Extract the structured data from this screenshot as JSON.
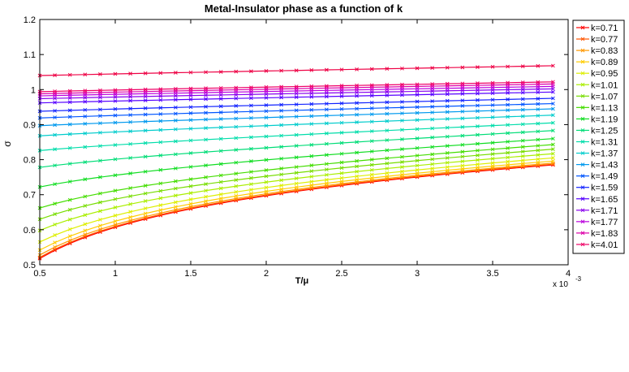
{
  "chart_data": {
    "type": "line",
    "title": "Metal-Insulator phase as a function of k",
    "xlabel": "T/μ",
    "ylabel": "σ",
    "xlim": [
      0.5,
      4
    ],
    "ylim": [
      0.5,
      1.2
    ],
    "x_multiplier_label": "x 10",
    "x_multiplier_exponent": "-3",
    "x_ticks": [
      0.5,
      1,
      1.5,
      2,
      2.5,
      3,
      3.5,
      4
    ],
    "x_tick_labels": [
      "0.5",
      "1",
      "1.5",
      "2",
      "2.5",
      "3",
      "3.5",
      "4"
    ],
    "y_ticks": [
      0.5,
      0.6,
      0.7,
      0.8,
      0.9,
      1.0,
      1.1,
      1.2
    ],
    "y_tick_labels": [
      "0.5",
      "0.6",
      "0.7",
      "0.8",
      "0.9",
      "1",
      "1.1",
      "1.2"
    ],
    "grid": false,
    "legend_position": "top-right",
    "marker": "x",
    "x": [
      0.5,
      0.6,
      0.7,
      0.8,
      0.9,
      1.0,
      1.1,
      1.2,
      1.3,
      1.4,
      1.5,
      1.6,
      1.7,
      1.8,
      1.9,
      2.0,
      2.1,
      2.2,
      2.3,
      2.4,
      2.5,
      2.6,
      2.7,
      2.8,
      2.9,
      3.0,
      3.1,
      3.2,
      3.3,
      3.4,
      3.5,
      3.6,
      3.7,
      3.8,
      3.9
    ],
    "series": [
      {
        "name": "k=0.71",
        "color": "#ff0000",
        "start": 0.518,
        "end": 0.785
      },
      {
        "name": "k=0.77",
        "color": "#ff5500",
        "start": 0.521,
        "end": 0.787
      },
      {
        "name": "k=0.83",
        "color": "#ff9900",
        "start": 0.528,
        "end": 0.79
      },
      {
        "name": "k=0.89",
        "color": "#ffcc00",
        "start": 0.542,
        "end": 0.796
      },
      {
        "name": "k=0.95",
        "color": "#ddee00",
        "start": 0.565,
        "end": 0.805
      },
      {
        "name": "k=1.01",
        "color": "#aaee00",
        "start": 0.598,
        "end": 0.817
      },
      {
        "name": "k=1.07",
        "color": "#77dd00",
        "start": 0.63,
        "end": 0.83
      },
      {
        "name": "k=1.13",
        "color": "#44dd00",
        "start": 0.662,
        "end": 0.843
      },
      {
        "name": "k=1.19",
        "color": "#11dd22",
        "start": 0.722,
        "end": 0.86
      },
      {
        "name": "k=1.25",
        "color": "#00dd77",
        "start": 0.778,
        "end": 0.883
      },
      {
        "name": "k=1.31",
        "color": "#00ddaa",
        "start": 0.826,
        "end": 0.905
      },
      {
        "name": "k=1.37",
        "color": "#00cccc",
        "start": 0.868,
        "end": 0.927
      },
      {
        "name": "k=1.43",
        "color": "#0099ee",
        "start": 0.897,
        "end": 0.945
      },
      {
        "name": "k=1.49",
        "color": "#0055ff",
        "start": 0.919,
        "end": 0.96
      },
      {
        "name": "k=1.59",
        "color": "#1122ff",
        "start": 0.938,
        "end": 0.975
      },
      {
        "name": "k=1.65",
        "color": "#5500ff",
        "start": 0.962,
        "end": 0.993
      },
      {
        "name": "k=1.71",
        "color": "#8800ee",
        "start": 0.974,
        "end": 1.002
      },
      {
        "name": "k=1.77",
        "color": "#bb00dd",
        "start": 0.982,
        "end": 1.009
      },
      {
        "name": "k=1.83",
        "color": "#dd00aa",
        "start": 0.988,
        "end": 1.016
      },
      {
        "name": "k=4.01",
        "color": "#ee0066",
        "start": 0.994,
        "end": 1.022
      }
    ],
    "extra_series_note_free": true,
    "extra_series": {
      "name": "",
      "color": "#ee0044",
      "start": 1.04,
      "end": 1.068
    }
  }
}
